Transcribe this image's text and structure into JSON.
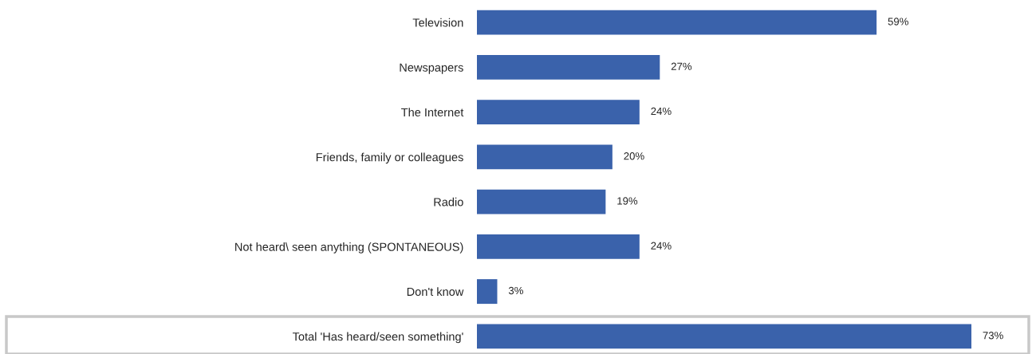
{
  "chart_data": {
    "type": "bar",
    "orientation": "horizontal",
    "categories": [
      "Television",
      "Newspapers",
      "The Internet",
      "Friends, family or colleagues",
      "Radio",
      "Not heard\\ seen anything (SPONTANEOUS)",
      "Don't know",
      "Total 'Has heard/seen something'"
    ],
    "values": [
      59,
      27,
      24,
      20,
      19,
      24,
      3,
      73
    ],
    "value_labels": [
      "59%",
      "27%",
      "24%",
      "20%",
      "19%",
      "24%",
      "3%",
      "73%"
    ],
    "color": "#3a62ab",
    "grid": false,
    "legend": false
  }
}
